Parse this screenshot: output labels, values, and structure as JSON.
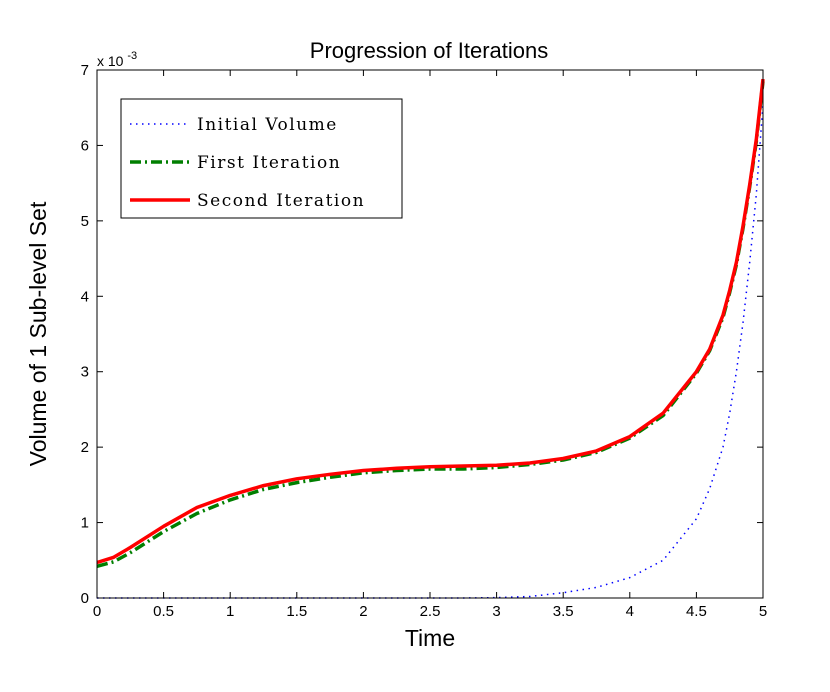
{
  "chart_data": {
    "type": "line",
    "title": "Progression of Iterations",
    "xlabel": "Time",
    "ylabel": "Volume of 1 Sub-level Set",
    "y_multiplier": "x 10",
    "y_exponent": "-3",
    "xlim": [
      0,
      5
    ],
    "ylim": [
      0,
      7
    ],
    "xticks": [
      0,
      0.5,
      1,
      1.5,
      2,
      2.5,
      3,
      3.5,
      4,
      4.5,
      5
    ],
    "xtick_labels": [
      "0",
      "0.5",
      "1",
      "1.5",
      "2",
      "2.5",
      "3",
      "3.5",
      "4",
      "4.5",
      "5"
    ],
    "yticks": [
      0,
      1,
      2,
      3,
      4,
      5,
      6,
      7
    ],
    "ytick_labels": [
      "0",
      "1",
      "2",
      "3",
      "4",
      "5",
      "6",
      "7"
    ],
    "grid": false,
    "legend_position": "top-left",
    "x": [
      0,
      0.125,
      0.25,
      0.5,
      0.75,
      1,
      1.25,
      1.5,
      1.75,
      2,
      2.25,
      2.5,
      2.75,
      3,
      3.25,
      3.5,
      3.75,
      4,
      4.25,
      4.5,
      4.6,
      4.7,
      4.75,
      4.8,
      4.85,
      4.9,
      4.95,
      5
    ],
    "series": [
      {
        "name": "Initial Volume",
        "color": "#0000ff",
        "style": "dotted",
        "values": [
          0,
          0,
          0,
          0,
          0,
          0,
          0,
          0,
          0,
          0,
          0,
          0,
          0,
          0.005,
          0.02,
          0.07,
          0.14,
          0.27,
          0.5,
          1.05,
          1.45,
          2.0,
          2.45,
          3.0,
          3.65,
          4.45,
          5.35,
          6.55
        ]
      },
      {
        "name": "First Iteration",
        "color": "#007f00",
        "style": "dashdot",
        "values": [
          0.42,
          0.48,
          0.6,
          0.88,
          1.12,
          1.3,
          1.44,
          1.53,
          1.6,
          1.66,
          1.69,
          1.71,
          1.71,
          1.73,
          1.77,
          1.83,
          1.93,
          2.12,
          2.42,
          2.98,
          3.28,
          3.72,
          4.05,
          4.42,
          4.9,
          5.45,
          6.05,
          6.85
        ]
      },
      {
        "name": "Second Iteration",
        "color": "#ff0000",
        "style": "solid",
        "values": [
          0.47,
          0.54,
          0.67,
          0.95,
          1.2,
          1.36,
          1.49,
          1.58,
          1.64,
          1.69,
          1.72,
          1.74,
          1.75,
          1.76,
          1.79,
          1.85,
          1.95,
          2.14,
          2.45,
          3.0,
          3.3,
          3.75,
          4.08,
          4.45,
          4.93,
          5.48,
          6.08,
          6.88
        ]
      }
    ]
  }
}
